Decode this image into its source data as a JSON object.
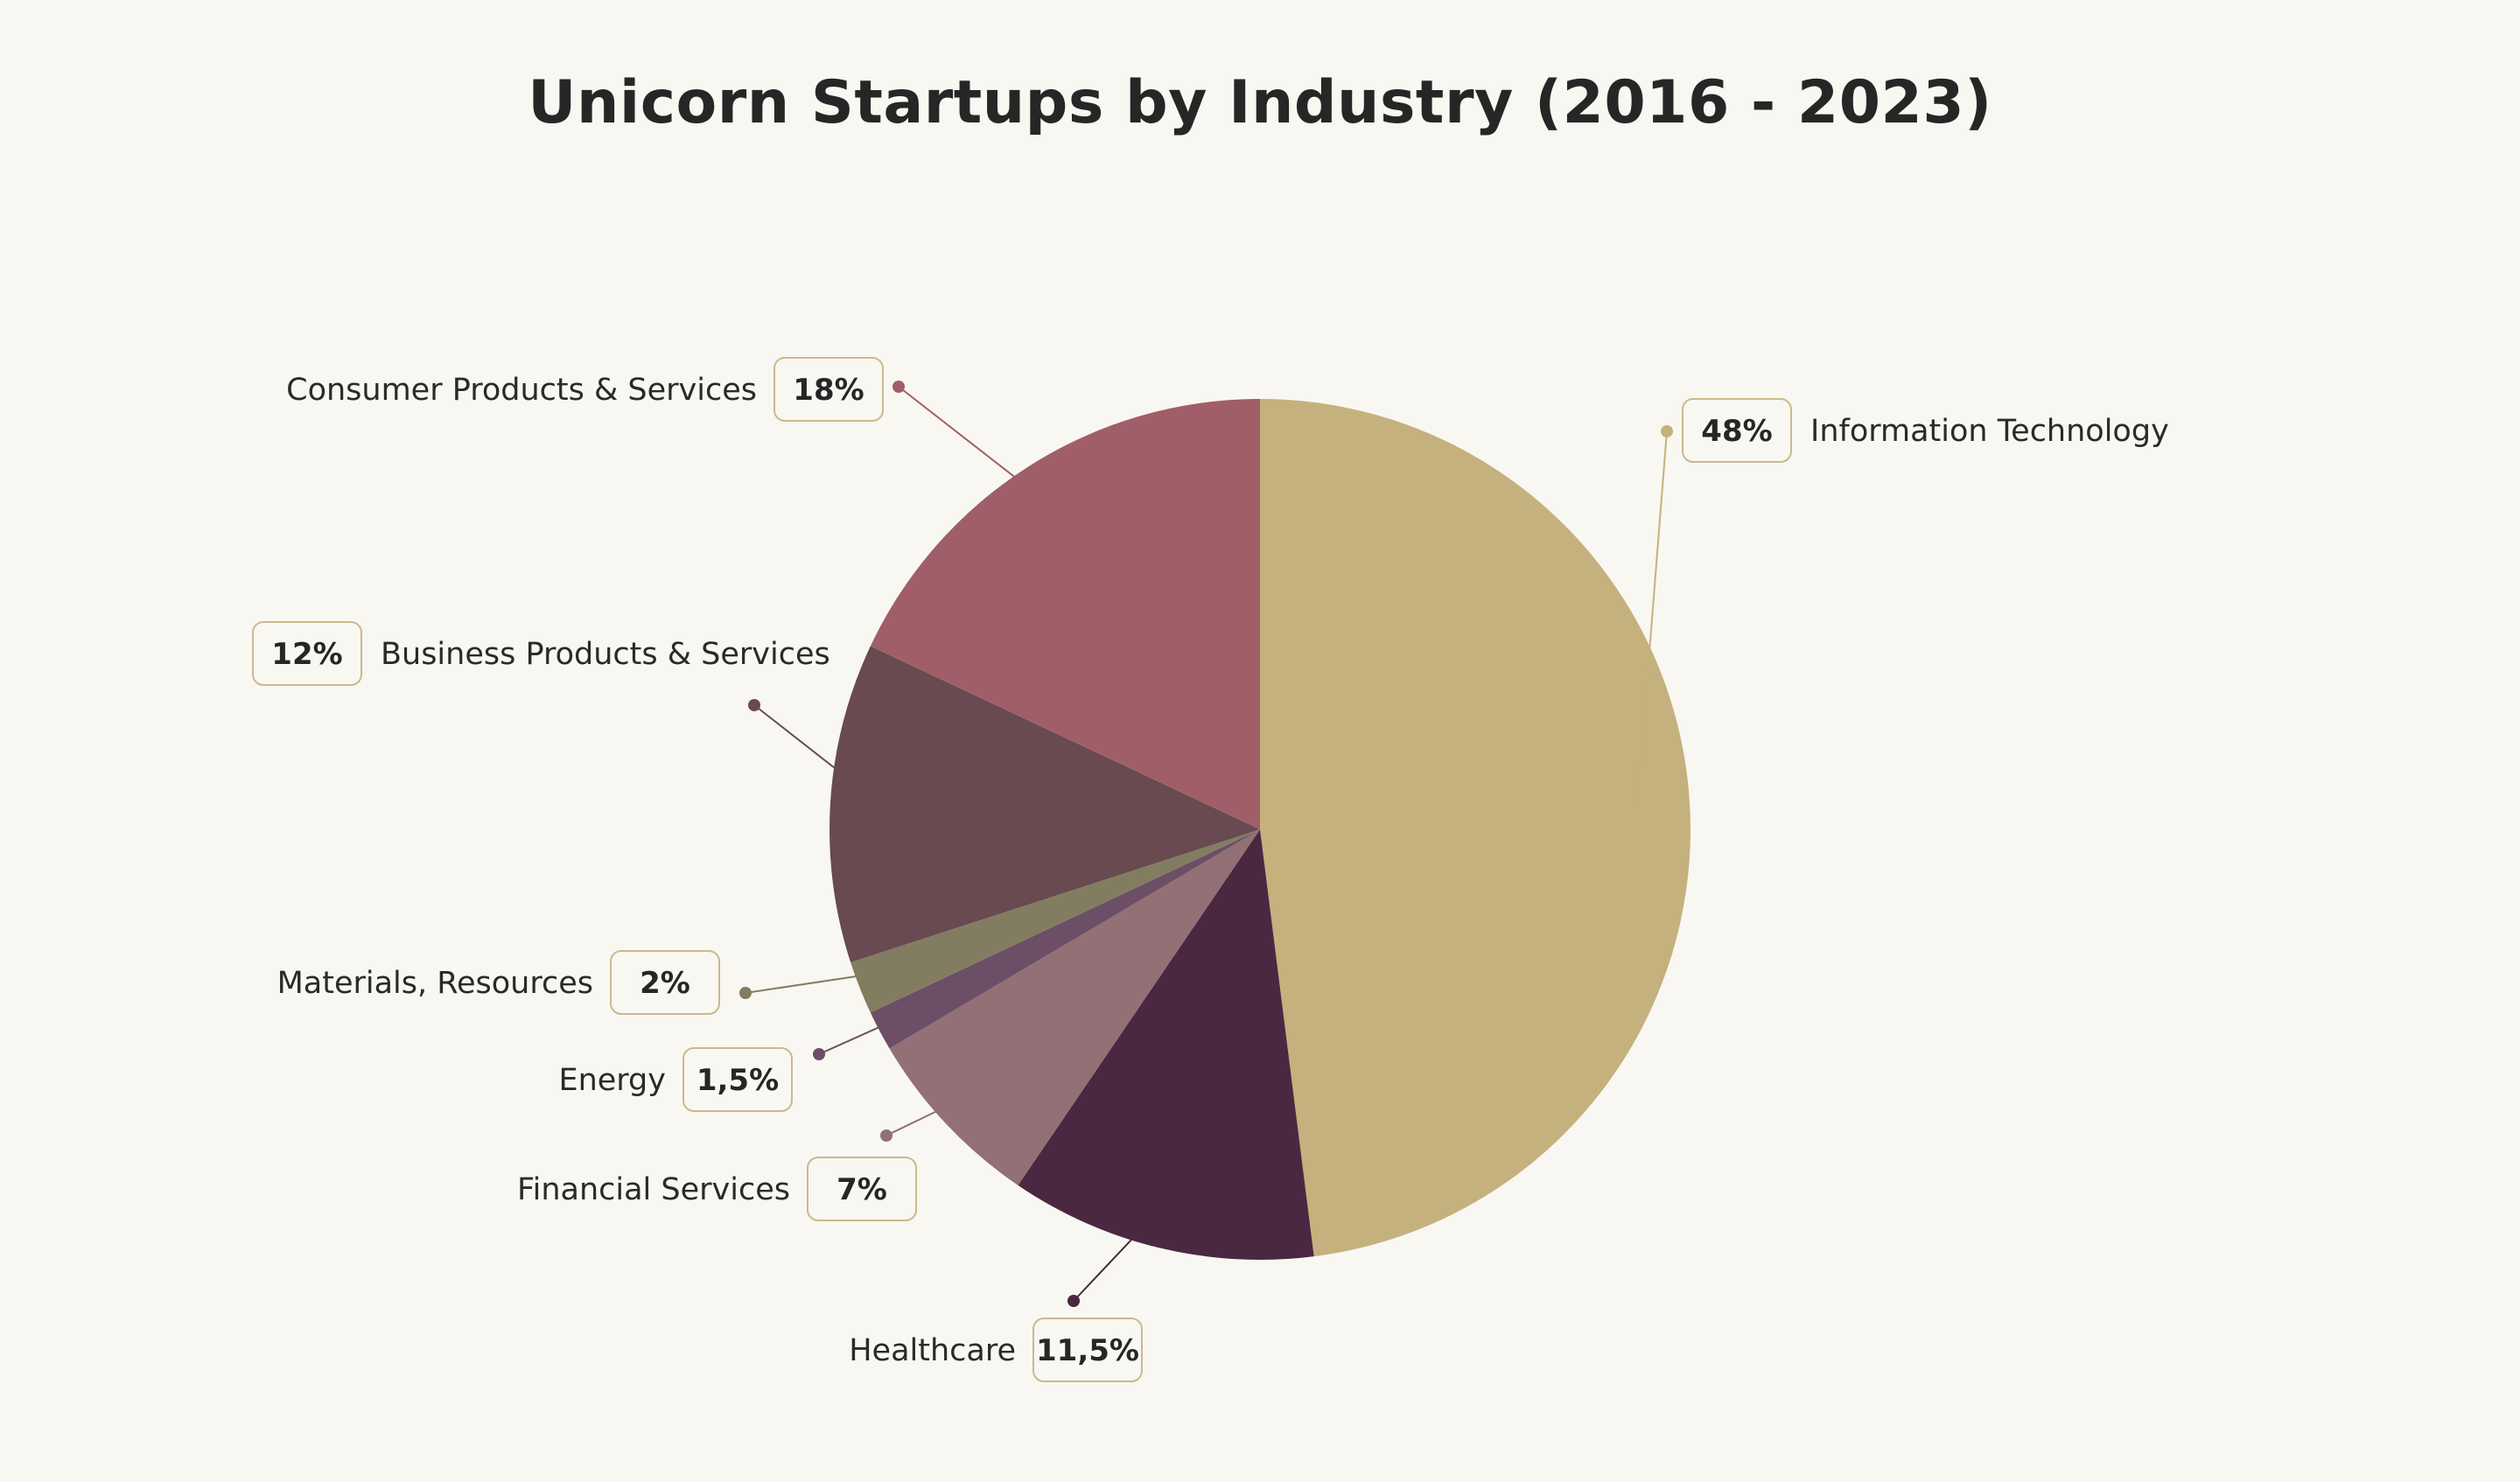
{
  "chart_data": {
    "type": "pie",
    "title": "Unicorn Startups by Industry (2016 - 2023)",
    "slices": [
      {
        "label": "Information Technology",
        "value": 48,
        "display": "48%",
        "color": "#c5b17d"
      },
      {
        "label": "Healthcare",
        "value": 11.5,
        "display": "11,5%",
        "color": "#4a2841"
      },
      {
        "label": "Financial Services",
        "value": 7,
        "display": "7%",
        "color": "#927075"
      },
      {
        "label": "Energy",
        "value": 1.5,
        "display": "1,5%",
        "color": "#6c4e66"
      },
      {
        "label": "Materials, Resources",
        "value": 2,
        "display": "2%",
        "color": "#827d61"
      },
      {
        "label": "Business Products & Services",
        "value": 12,
        "display": "12%",
        "color": "#684a50"
      },
      {
        "label": "Consumer Products & Services",
        "value": 18,
        "display": "18%",
        "color": "#a05f68"
      }
    ],
    "legend": "none"
  }
}
